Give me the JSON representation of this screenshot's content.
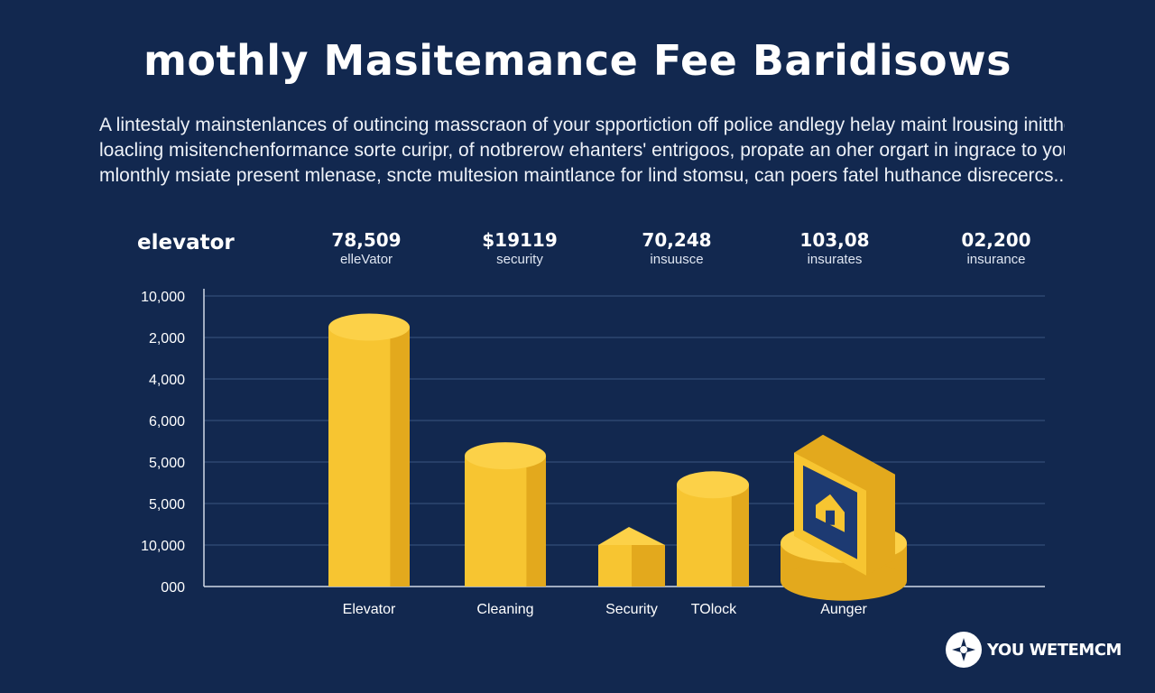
{
  "title": "mothly Masitemance Fee Baridisows",
  "description": [
    "A lintestaly mainstenlances of outincing masscraon of your spportiction off police andlegy helay maint lrousing initthded",
    "loacling misitenchenformance sorte curipr, of notbrerow ehanters' entrigoos, propate an oher orgart in ingrace to your",
    "mlonthly msiate present mlenase, sncte multesion maintlance for lind stomsu, can poers fatel huthance disrecercs..."
  ],
  "stats": {
    "heading": "elevator",
    "items": [
      {
        "value": "78,509",
        "label": "elleVator"
      },
      {
        "value": "$19119",
        "label": "security"
      },
      {
        "value": "70,248",
        "label": "insuusce"
      },
      {
        "value": "103,08",
        "label": "insurates"
      },
      {
        "value": "02,200",
        "label": "insurance"
      }
    ]
  },
  "chart_data": {
    "type": "bar",
    "title": "mothly Masitemance Fee Baridisows",
    "y_tick_labels": [
      "10,000",
      "2,000",
      "4,000",
      "6,000",
      "5,000",
      "5,000",
      "10,000",
      "000"
    ],
    "y_tick_positions": [
      7,
      6,
      5,
      4,
      3,
      2,
      1,
      0
    ],
    "ylim": [
      0,
      7
    ],
    "grid": true,
    "categories": [
      "Elevator",
      "Cleaning",
      "Security",
      "TOlock",
      "Aunger"
    ],
    "values": [
      6.25,
      3.15,
      1.0,
      2.45,
      1.05
    ],
    "bar_color": "#f7c531",
    "bar_side_color": "#e3a91d",
    "bar_top_color": "#fcd148"
  },
  "colors": {
    "background": "#12284f",
    "grid": "#3b5680",
    "axis": "#cfd8e6"
  },
  "brand": {
    "name": "YOU WETEMCM",
    "icon": "compass-star-icon"
  }
}
